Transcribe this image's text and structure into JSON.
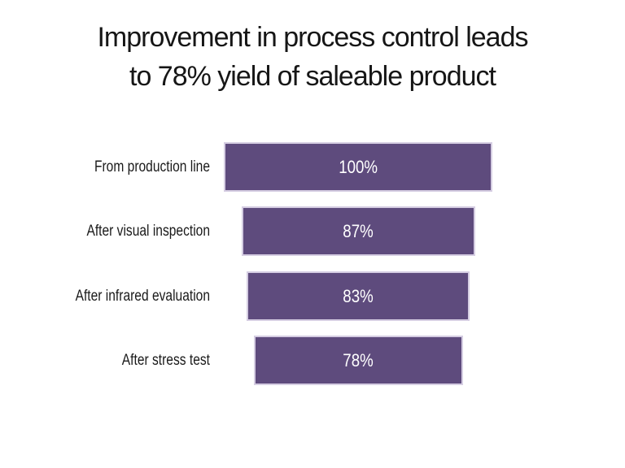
{
  "slide": {
    "title_line1": "Improvement in process control leads",
    "title_line2": "to 78% yield of saleable product"
  },
  "chart_data": {
    "type": "bar",
    "subtype": "centered-funnel",
    "orientation": "horizontal",
    "title": "Improvement in process control leads to 78% yield of saleable product",
    "categories": [
      "From production line",
      "After visual inspection",
      "After infrared evaluation",
      "After stress test"
    ],
    "values": [
      100,
      87,
      83,
      78
    ],
    "data_labels": [
      "100%",
      "87%",
      "83%",
      "78%"
    ],
    "value_range": [
      0,
      100
    ],
    "grid": false,
    "legend": false,
    "axes_visible": false,
    "colors": {
      "bar_fill": "#5e4b7d",
      "bar_border": "#d5cde2",
      "data_label": "#ffffff",
      "category_label": "#1a1a1a",
      "title": "#161616",
      "background": "#ffffff"
    }
  }
}
